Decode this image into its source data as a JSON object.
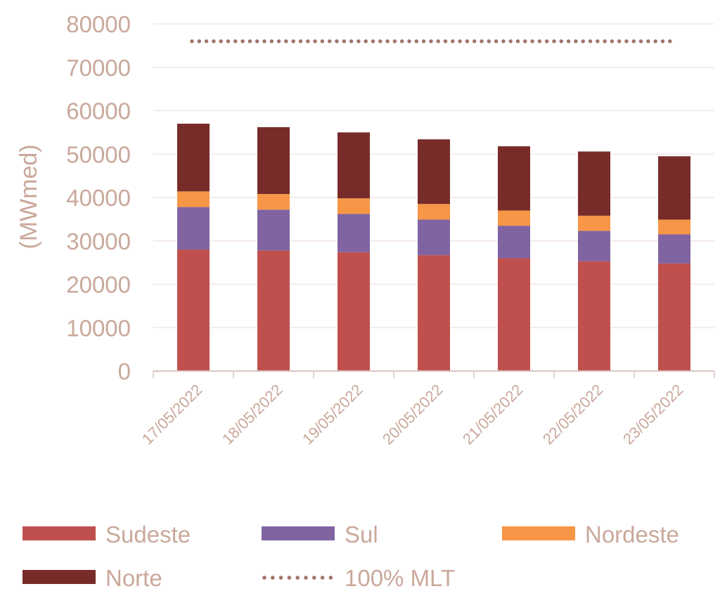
{
  "chart_data": {
    "type": "bar",
    "stacked": true,
    "title": "",
    "xlabel": "",
    "ylabel": "(MWmed)",
    "ylim": [
      0,
      80000
    ],
    "yticks": [
      0,
      10000,
      20000,
      30000,
      40000,
      50000,
      60000,
      70000,
      80000
    ],
    "grid": true,
    "legend_position": "bottom",
    "categories": [
      "17/05/2022",
      "18/05/2022",
      "19/05/2022",
      "20/05/2022",
      "21/05/2022",
      "22/05/2022",
      "23/05/2022"
    ],
    "series": [
      {
        "name": "Sudeste",
        "color": "#c0504d",
        "values": [
          28000,
          27800,
          27400,
          26700,
          26000,
          25300,
          24800
        ]
      },
      {
        "name": "Sul",
        "color": "#8064a2",
        "values": [
          9800,
          9400,
          8800,
          8200,
          7500,
          7000,
          6700
        ]
      },
      {
        "name": "Nordeste",
        "color": "#f79646",
        "values": [
          3600,
          3600,
          3600,
          3600,
          3500,
          3500,
          3400
        ]
      },
      {
        "name": "Norte",
        "color": "#772c2a",
        "values": [
          15600,
          15400,
          15200,
          14900,
          14800,
          14800,
          14600
        ]
      }
    ],
    "reference_line": {
      "name": "100% MLT",
      "color": "#a0766a",
      "value": 76000,
      "style": "dotted"
    }
  }
}
